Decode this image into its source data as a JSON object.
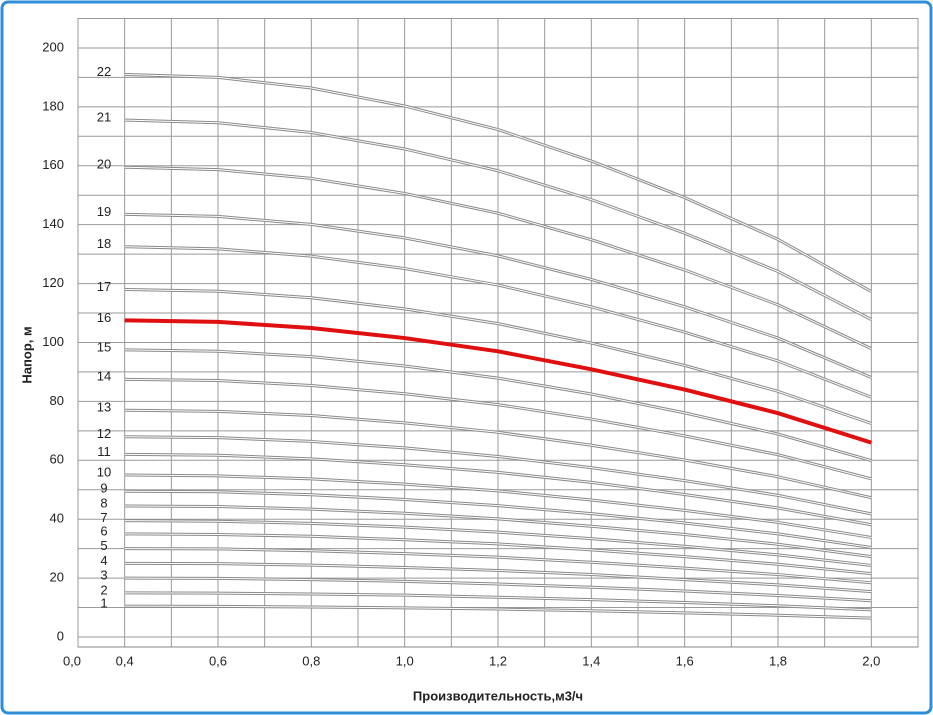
{
  "chart_data": {
    "type": "line",
    "x_title": "Производительность,м3/ч",
    "y_title": "Напор, м",
    "x_origin_label": "0,0",
    "x": [
      0.4,
      0.6,
      0.8,
      1.0,
      1.2,
      1.4,
      1.6,
      1.8,
      2.0
    ],
    "xlim": [
      0.3,
      2.1
    ],
    "xticks": [
      {
        "value": 0.4,
        "label": "0,4"
      },
      {
        "value": 0.6,
        "label": "0,6"
      },
      {
        "value": 0.8,
        "label": "0,8"
      },
      {
        "value": 1.0,
        "label": "1,0"
      },
      {
        "value": 1.2,
        "label": "1,2"
      },
      {
        "value": 1.4,
        "label": "1,4"
      },
      {
        "value": 1.6,
        "label": "1,6"
      },
      {
        "value": 1.8,
        "label": "1,8"
      },
      {
        "value": 2.0,
        "label": "2,0"
      }
    ],
    "xgrid": [
      0.3,
      0.4,
      0.5,
      0.6,
      0.7,
      0.8,
      0.9,
      1.0,
      1.1,
      1.2,
      1.3,
      1.4,
      1.5,
      1.6,
      1.7,
      1.8,
      1.9,
      2.0,
      2.1
    ],
    "ylim": [
      0,
      210
    ],
    "yticks": [
      0,
      20,
      40,
      60,
      80,
      100,
      120,
      140,
      160,
      180,
      200
    ],
    "ygrid": [
      0,
      10,
      20,
      30,
      40,
      50,
      60,
      70,
      80,
      90,
      100,
      110,
      120,
      130,
      140,
      150,
      160,
      170,
      180,
      190,
      200,
      210
    ],
    "grid": true,
    "series": [
      {
        "name": "1",
        "color": "#8a8a8a",
        "values": [
          10.5,
          10.4,
          10.2,
          9.9,
          9.5,
          8.9,
          8.2,
          7.4,
          6.4
        ]
      },
      {
        "name": "2",
        "color": "#8a8a8a",
        "values": [
          15,
          14.9,
          14.6,
          14.2,
          13.5,
          12.7,
          11.7,
          10.6,
          9.2
        ]
      },
      {
        "name": "3",
        "color": "#8a8a8a",
        "values": [
          20,
          19.9,
          19.5,
          18.9,
          18,
          16.9,
          15.6,
          14.1,
          12.3
        ]
      },
      {
        "name": "4",
        "color": "#8a8a8a",
        "values": [
          25,
          24.9,
          24.4,
          23.6,
          22.6,
          21.2,
          19.5,
          17.7,
          15.4
        ]
      },
      {
        "name": "5",
        "color": "#8a8a8a",
        "values": [
          30,
          29.9,
          29.3,
          28.3,
          27.1,
          25.4,
          23.4,
          21.2,
          18.4
        ]
      },
      {
        "name": "6",
        "color": "#8a8a8a",
        "values": [
          35,
          34.8,
          34.2,
          33,
          31.6,
          29.6,
          27.3,
          24.7,
          21.5
        ]
      },
      {
        "name": "7",
        "color": "#8a8a8a",
        "values": [
          39.5,
          39.3,
          38.6,
          37.3,
          35.6,
          33.4,
          30.8,
          27.9,
          24.3
        ]
      },
      {
        "name": "8",
        "color": "#8a8a8a",
        "values": [
          44.5,
          44.3,
          43.4,
          42,
          40.1,
          37.6,
          34.8,
          31.5,
          27.3
        ]
      },
      {
        "name": "9",
        "color": "#8a8a8a",
        "values": [
          49.5,
          49.3,
          48.3,
          46.7,
          44.6,
          41.9,
          38.7,
          35,
          30.4
        ]
      },
      {
        "name": "10",
        "color": "#8a8a8a",
        "values": [
          55,
          54.7,
          53.7,
          51.9,
          49.6,
          46.5,
          43,
          38.9,
          33.8
        ]
      },
      {
        "name": "11",
        "color": "#8a8a8a",
        "values": [
          62,
          61.7,
          60.5,
          58.5,
          55.9,
          52.5,
          48.4,
          43.8,
          38.1
        ]
      },
      {
        "name": "12",
        "color": "#8a8a8a",
        "values": [
          68,
          67.7,
          66.4,
          64.2,
          61.3,
          57.5,
          53.1,
          48.1,
          41.8
        ]
      },
      {
        "name": "13",
        "color": "#8a8a8a",
        "values": [
          77,
          76.6,
          75.2,
          72.7,
          69.5,
          65.1,
          60.1,
          54.4,
          47.3
        ]
      },
      {
        "name": "14",
        "color": "#8a8a8a",
        "values": [
          87.5,
          87.1,
          85.4,
          82.6,
          78.9,
          74,
          68.3,
          61.9,
          53.7
        ]
      },
      {
        "name": "15",
        "color": "#8a8a8a",
        "values": [
          97.5,
          97,
          95.2,
          92,
          87.9,
          82.5,
          76.1,
          68.9,
          59.9
        ]
      },
      {
        "name": "16",
        "color": "#e01010",
        "values": [
          107.5,
          107,
          104.9,
          101.5,
          97,
          90.9,
          84,
          76,
          66
        ]
      },
      {
        "name": "17",
        "color": "#8a8a8a",
        "values": [
          118,
          117.4,
          115.2,
          111.4,
          106.4,
          99.8,
          92.2,
          83.4,
          72.5
        ]
      },
      {
        "name": "18",
        "color": "#8a8a8a",
        "values": [
          132.5,
          131.8,
          129.3,
          125.1,
          119.5,
          112.1,
          103.5,
          93.7,
          81.4
        ]
      },
      {
        "name": "19",
        "color": "#8a8a8a",
        "values": [
          143.5,
          142.8,
          140.1,
          135.5,
          129.4,
          121.4,
          112.1,
          101.5,
          88.1
        ]
      },
      {
        "name": "20",
        "color": "#8a8a8a",
        "values": [
          159.5,
          158.7,
          155.7,
          150.6,
          143.9,
          134.9,
          124.6,
          112.8,
          97.9
        ]
      },
      {
        "name": "21",
        "color": "#8a8a8a",
        "values": [
          175.5,
          174.6,
          171.3,
          165.7,
          158.3,
          148.5,
          137.1,
          124.1,
          107.8
        ]
      },
      {
        "name": "22",
        "color": "#8a8a8a",
        "values": [
          191,
          190,
          186.4,
          180.3,
          172.3,
          161.6,
          149.2,
          135,
          117.3
        ]
      }
    ]
  }
}
